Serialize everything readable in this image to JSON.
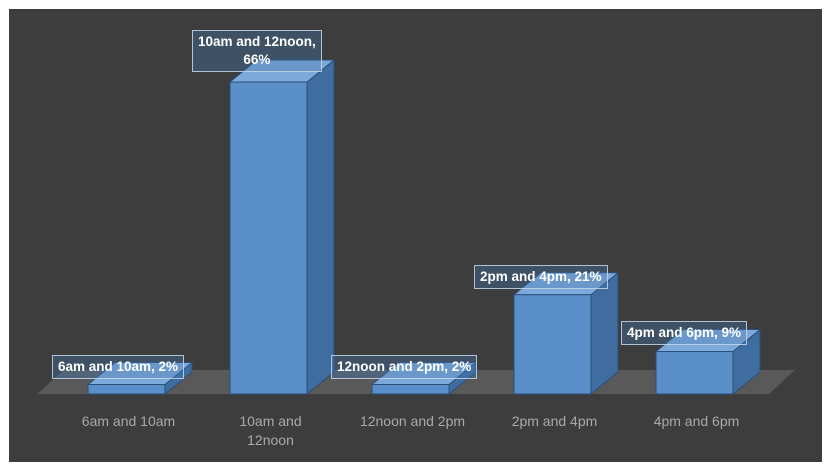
{
  "chart_data": {
    "type": "bar",
    "style": "3d-column",
    "categories": [
      "6am and 10am",
      "10am and 12noon",
      "12noon and 2pm",
      "2pm and 4pm",
      "4pm and 6pm"
    ],
    "category_label_lines": [
      [
        "6am and 10am"
      ],
      [
        "10am and",
        "12noon"
      ],
      [
        "12noon and 2pm"
      ],
      [
        "2pm and 4pm"
      ],
      [
        "4pm and 6pm"
      ]
    ],
    "values": [
      2,
      66,
      2,
      21,
      9
    ],
    "data_labels": [
      [
        "6am and 10am, 2%"
      ],
      [
        "10am and 12noon,",
        "66%"
      ],
      [
        "12noon and 2pm, 2%"
      ],
      [
        "2pm and 4pm, 21%"
      ],
      [
        "4pm and 6pm, 9%"
      ]
    ],
    "value_unit": "%",
    "title": "",
    "xlabel": "",
    "ylabel": "",
    "ylim": [
      0,
      66
    ],
    "grid": false,
    "legend": "none",
    "colors": {
      "background": "#3d3d3d",
      "floor": "#595959",
      "bar_front": "#5b8fc9",
      "bar_side": "#3f6d9f",
      "bar_top": "#7eaadb",
      "bar_edge": "#2a4f7a",
      "axis_text": "#a9a9a9",
      "label_text": "#ffffff"
    }
  }
}
